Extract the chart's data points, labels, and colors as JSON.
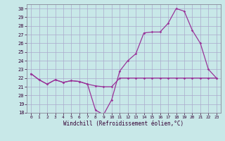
{
  "xlabel": "Windchill (Refroidissement éolien,°C)",
  "bg_color": "#c8e8e8",
  "grid_color": "#aaaacc",
  "line_color": "#993399",
  "xlim": [
    -0.5,
    23.5
  ],
  "ylim": [
    18,
    30.5
  ],
  "xticks": [
    0,
    1,
    2,
    3,
    4,
    5,
    6,
    7,
    8,
    9,
    10,
    11,
    12,
    13,
    14,
    15,
    16,
    17,
    18,
    19,
    20,
    21,
    22,
    23
  ],
  "yticks": [
    18,
    19,
    20,
    21,
    22,
    23,
    24,
    25,
    26,
    27,
    28,
    29,
    30
  ],
  "line1_x": [
    0,
    1,
    2,
    3,
    4,
    5,
    6,
    7,
    8,
    9,
    10,
    11,
    12,
    13,
    14,
    15,
    16,
    17,
    18,
    19,
    20,
    21,
    22,
    23
  ],
  "line1_y": [
    22.5,
    21.8,
    21.3,
    21.8,
    21.5,
    21.7,
    21.6,
    21.3,
    21.1,
    21.0,
    21.0,
    22.0,
    22.0,
    22.0,
    22.0,
    22.0,
    22.0,
    22.0,
    22.0,
    22.0,
    22.0,
    22.0,
    22.0,
    22.0
  ],
  "line2_x": [
    0,
    1,
    2,
    3,
    4,
    5,
    6,
    7,
    8,
    9,
    10,
    11,
    12,
    13,
    14,
    15,
    16,
    17,
    18,
    19,
    20,
    21,
    22,
    23
  ],
  "line2_y": [
    22.5,
    21.8,
    21.3,
    21.8,
    21.5,
    21.7,
    21.6,
    21.3,
    18.3,
    17.8,
    19.5,
    22.8,
    24.0,
    24.8,
    27.2,
    27.3,
    27.3,
    28.3,
    30.0,
    29.7,
    27.5,
    26.0,
    23.0,
    22.0
  ]
}
